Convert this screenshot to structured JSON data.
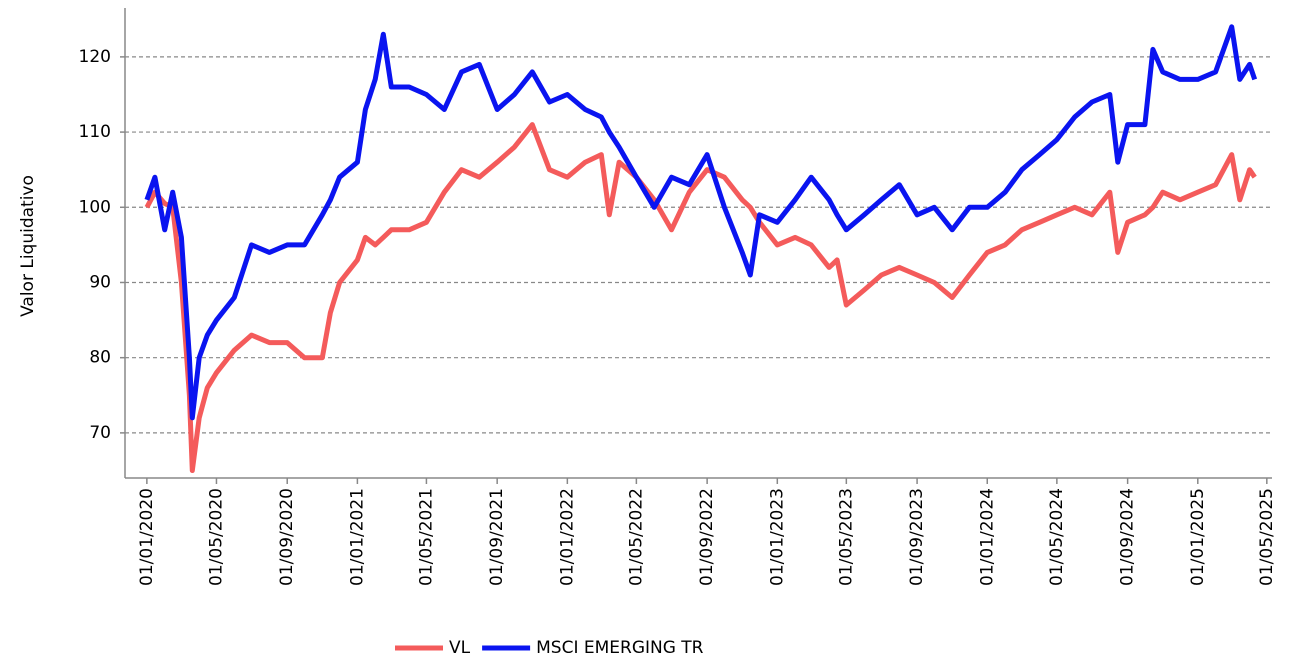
{
  "chart_data": {
    "type": "line",
    "y_label": "Valor Liquidativo",
    "x": [
      "01/01/2020",
      "15/01/2020",
      "01/02/2020",
      "15/02/2020",
      "01/03/2020",
      "15/03/2020",
      "20/03/2020",
      "01/04/2020",
      "15/04/2020",
      "01/05/2020",
      "01/06/2020",
      "01/07/2020",
      "01/08/2020",
      "01/09/2020",
      "01/10/2020",
      "01/11/2020",
      "15/11/2020",
      "01/12/2020",
      "01/01/2021",
      "15/01/2021",
      "01/02/2021",
      "15/02/2021",
      "01/03/2021",
      "01/04/2021",
      "01/05/2021",
      "01/06/2021",
      "01/07/2021",
      "01/08/2021",
      "01/09/2021",
      "01/10/2021",
      "01/11/2021",
      "01/12/2021",
      "01/01/2022",
      "01/02/2022",
      "01/03/2022",
      "15/03/2022",
      "01/04/2022",
      "01/05/2022",
      "01/06/2022",
      "01/07/2022",
      "01/08/2022",
      "01/09/2022",
      "01/10/2022",
      "01/11/2022",
      "15/11/2022",
      "01/12/2022",
      "01/01/2023",
      "01/02/2023",
      "01/03/2023",
      "01/04/2023",
      "15/04/2023",
      "01/05/2023",
      "01/06/2023",
      "01/07/2023",
      "01/08/2023",
      "01/09/2023",
      "01/10/2023",
      "01/11/2023",
      "01/12/2023",
      "01/01/2024",
      "01/02/2024",
      "01/03/2024",
      "01/04/2024",
      "01/05/2024",
      "01/06/2024",
      "01/07/2024",
      "01/08/2024",
      "15/08/2024",
      "01/09/2024",
      "01/10/2024",
      "15/10/2024",
      "01/11/2024",
      "01/12/2024",
      "01/01/2025",
      "01/02/2025",
      "01/03/2025",
      "15/03/2025",
      "01/04/2025",
      "10/04/2025"
    ],
    "series": [
      {
        "name": "VL",
        "color": "#f45b5b",
        "values": [
          100,
          102,
          100.5,
          100,
          90,
          75,
          65,
          72,
          76,
          78,
          81,
          83,
          82,
          82,
          80,
          80,
          86,
          90,
          93,
          96,
          95,
          96,
          97,
          97,
          98,
          102,
          105,
          104,
          106,
          108,
          111,
          105,
          104,
          106,
          107,
          99,
          106,
          104,
          101,
          97,
          102,
          105,
          104,
          101,
          100,
          98,
          95,
          96,
          95,
          92,
          93,
          87,
          89,
          91,
          92,
          91,
          90,
          88,
          91,
          94,
          95,
          97,
          98,
          99,
          100,
          99,
          102,
          94,
          98,
          99,
          100,
          102,
          101,
          102,
          103,
          107,
          101,
          105,
          104
        ]
      },
      {
        "name": "MSCI EMERGING TR",
        "color": "#0a14f0",
        "values": [
          101,
          104,
          97,
          102,
          96,
          80,
          72,
          80,
          83,
          85,
          88,
          95,
          94,
          95,
          95,
          99,
          101,
          104,
          106,
          113,
          117,
          123,
          116,
          116,
          115,
          113,
          118,
          119,
          113,
          115,
          118,
          114,
          115,
          113,
          112,
          110,
          108,
          104,
          100,
          104,
          103,
          107,
          100,
          94,
          91,
          99,
          98,
          101,
          104,
          101,
          99,
          97,
          99,
          101,
          103,
          99,
          100,
          97,
          100,
          100,
          102,
          105,
          107,
          109,
          112,
          114,
          115,
          106,
          111,
          111,
          121,
          118,
          117,
          117,
          118,
          124,
          117,
          119,
          117
        ]
      }
    ],
    "xlim": [
      "24/11/2019",
      "10/05/2025"
    ],
    "xticks": [
      "01/01/2020",
      "01/05/2020",
      "01/09/2020",
      "01/01/2021",
      "01/05/2021",
      "01/09/2021",
      "01/01/2022",
      "01/05/2022",
      "01/09/2022",
      "01/01/2023",
      "01/05/2023",
      "01/09/2023",
      "01/01/2024",
      "01/05/2024",
      "01/09/2024",
      "01/01/2025",
      "01/05/2025"
    ],
    "ylim": [
      64,
      126.5
    ],
    "yticks": [
      70,
      80,
      90,
      100,
      110,
      120
    ],
    "grid": true,
    "legend": "bottom"
  }
}
